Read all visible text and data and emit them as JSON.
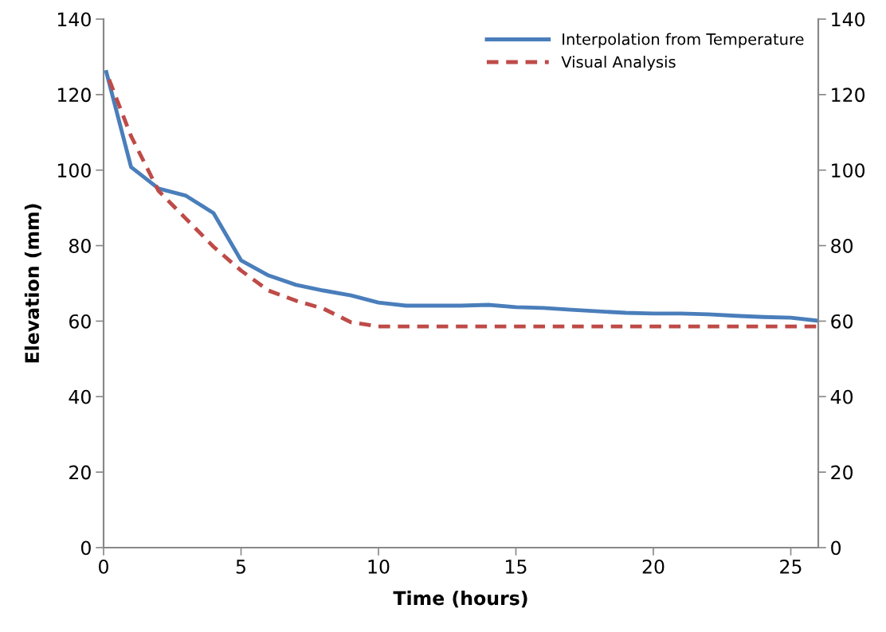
{
  "chart_data": {
    "type": "line",
    "xlabel": "Time (hours)",
    "ylabel": "Elevation (mm)",
    "xlim": [
      0,
      26
    ],
    "xticks": [
      0,
      5,
      10,
      15,
      20,
      25
    ],
    "ylim": [
      0,
      140
    ],
    "yticks": [
      0,
      20,
      40,
      60,
      80,
      100,
      120,
      140
    ],
    "y2lim": [
      0,
      140
    ],
    "y2ticks": [
      0,
      20,
      40,
      60,
      80,
      100,
      120,
      140
    ],
    "grid": false,
    "legend": "top right",
    "series": [
      {
        "name": "Interpolation from Temperature",
        "color": "#4a7ebb",
        "line_style": "solid",
        "x": [
          0.1,
          1,
          2,
          3,
          4,
          5,
          6,
          7,
          8,
          9,
          10,
          11,
          12,
          13,
          14,
          15,
          16,
          17,
          18,
          19,
          20,
          21,
          22,
          23,
          24,
          25,
          26
        ],
        "values": [
          126,
          100.8,
          95.1,
          93.2,
          88.6,
          76.1,
          72.1,
          69.6,
          68.1,
          66.8,
          64.9,
          64.1,
          64.1,
          64.1,
          64.3,
          63.7,
          63.5,
          63.0,
          62.6,
          62.2,
          62.0,
          62.0,
          61.8,
          61.4,
          61.1,
          60.9,
          60.1
        ]
      },
      {
        "name": "Visual Analysis",
        "color": "#be4b48",
        "line_style": "dashed",
        "x": [
          0.2,
          1,
          2,
          3,
          4,
          5,
          6,
          7,
          8,
          9,
          10,
          11,
          12,
          13,
          14,
          15,
          16,
          17,
          18,
          19,
          20,
          21,
          22,
          23,
          24,
          25,
          26
        ],
        "values": [
          124,
          109,
          94.5,
          87.1,
          79.7,
          73.4,
          68.1,
          65.4,
          63.3,
          59.7,
          58.6,
          58.6,
          58.6,
          58.6,
          58.6,
          58.6,
          58.6,
          58.6,
          58.6,
          58.6,
          58.6,
          58.6,
          58.6,
          58.6,
          58.6,
          58.6,
          58.6
        ]
      }
    ]
  }
}
